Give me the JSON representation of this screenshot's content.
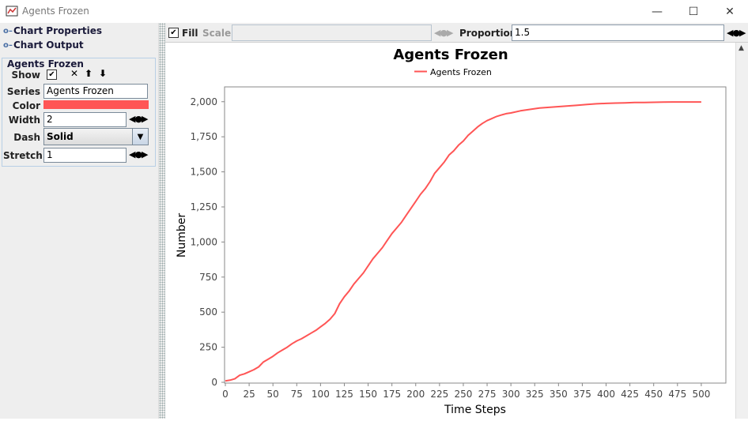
{
  "window": {
    "title": "Agents Frozen",
    "minimize_glyph": "—",
    "maximize_glyph": "☐",
    "close_glyph": "✕"
  },
  "sidebar": {
    "tree": [
      {
        "label": "Chart Properties"
      },
      {
        "label": "Chart Output"
      }
    ],
    "series_group": {
      "title": "Agents Frozen",
      "show_label": "Show",
      "show_checked": true,
      "series_label": "Series",
      "series_value": "Agents Frozen",
      "color_label": "Color",
      "color_value": "#ff5555",
      "width_label": "Width",
      "width_value": "2",
      "dash_label": "Dash",
      "dash_value": "Solid",
      "stretch_label": "Stretch",
      "stretch_value": "1"
    }
  },
  "toolbar": {
    "fill_label": "Fill",
    "fill_checked": true,
    "scale_label": "Scale:",
    "scale_value": "",
    "proportion_label": "Proportion:",
    "proportion_value": "1.5"
  },
  "chart_data": {
    "type": "line",
    "title": "Agents Frozen",
    "xlabel": "Time Steps",
    "ylabel": "Number",
    "xlim": [
      0,
      525
    ],
    "ylim": [
      0,
      2100
    ],
    "xticks": [
      0,
      25,
      50,
      75,
      100,
      125,
      150,
      175,
      200,
      225,
      250,
      275,
      300,
      325,
      350,
      375,
      400,
      425,
      450,
      475,
      500
    ],
    "yticks": [
      0,
      250,
      500,
      750,
      1000,
      1250,
      1500,
      1750,
      2000
    ],
    "ytick_labels": [
      "0",
      "250",
      "500",
      "750",
      "1,000",
      "1,250",
      "1,500",
      "1,750",
      "2,000"
    ],
    "legend_position": "top-center",
    "grid": false,
    "series": [
      {
        "name": "Agents Frozen",
        "color": "#ff5555",
        "x": [
          0,
          5,
          10,
          15,
          20,
          25,
          30,
          35,
          40,
          45,
          50,
          55,
          60,
          65,
          70,
          75,
          80,
          85,
          90,
          95,
          100,
          105,
          110,
          115,
          120,
          125,
          130,
          135,
          140,
          145,
          150,
          155,
          160,
          165,
          170,
          175,
          180,
          185,
          190,
          195,
          200,
          205,
          210,
          215,
          220,
          225,
          230,
          235,
          240,
          245,
          250,
          255,
          260,
          265,
          270,
          275,
          280,
          285,
          290,
          295,
          300,
          310,
          320,
          330,
          340,
          350,
          360,
          370,
          380,
          390,
          400,
          410,
          420,
          430,
          440,
          450,
          460,
          470,
          480,
          500
        ],
        "values": [
          10,
          15,
          25,
          50,
          60,
          75,
          90,
          110,
          145,
          165,
          185,
          210,
          230,
          250,
          275,
          295,
          310,
          330,
          350,
          370,
          395,
          420,
          450,
          490,
          560,
          610,
          650,
          700,
          740,
          780,
          830,
          880,
          920,
          960,
          1010,
          1060,
          1100,
          1140,
          1190,
          1240,
          1290,
          1340,
          1380,
          1430,
          1490,
          1530,
          1570,
          1620,
          1650,
          1690,
          1720,
          1760,
          1790,
          1820,
          1845,
          1865,
          1880,
          1895,
          1905,
          1915,
          1920,
          1935,
          1945,
          1955,
          1960,
          1965,
          1970,
          1975,
          1980,
          1985,
          1988,
          1990,
          1992,
          1994,
          1995,
          1996,
          1997,
          1998,
          1998,
          1998
        ]
      }
    ]
  }
}
